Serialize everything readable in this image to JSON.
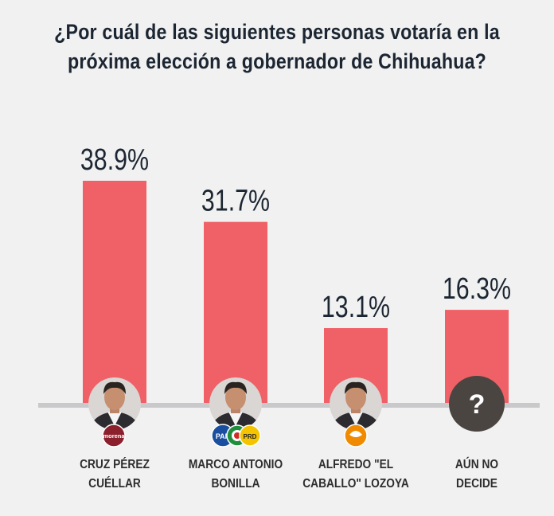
{
  "title_lines": [
    "¿Por cuál de las siguientes personas votaría en la",
    "próxima elección a gobernador de Chihuahua?"
  ],
  "colors": {
    "bar": "#ef6166",
    "text": "#1c2632",
    "baseline": "#c9c9cc",
    "question_avatar": "#4b4542"
  },
  "chart_data": {
    "type": "bar",
    "title": "¿Por cuál de las siguientes personas votaría en la próxima elección a gobernador de Chihuahua?",
    "categories": [
      "CRUZ PÉREZ CUÉLLAR",
      "MARCO ANTONIO BONILLA",
      "ALFREDO \"EL CABALLO\" LOZOYA",
      "AÚN NO DECIDE"
    ],
    "values": [
      38.9,
      31.7,
      13.1,
      16.3
    ],
    "value_labels": [
      "38.9%",
      "31.7%",
      "13.1%",
      "16.3%"
    ],
    "label_lines": [
      [
        "CRUZ PÉREZ",
        "CUÉLLAR"
      ],
      [
        "MARCO ANTONIO",
        "BONILLA"
      ],
      [
        "ALFREDO \"EL",
        "CABALLO\" LOZOYA"
      ],
      [
        "AÚN NO",
        "DECIDE"
      ]
    ],
    "party_logos": [
      [
        "morena-logo"
      ],
      [
        "pan-logo",
        "pri-logo",
        "prd-logo"
      ],
      [
        "movimiento-ciudadano-logo"
      ],
      []
    ],
    "party_logo_text": {
      "morena": "morena",
      "pan": "PAN",
      "pri": "PRI",
      "prd": "PRD"
    },
    "question_mark": "?",
    "xlabel": "",
    "ylabel": "",
    "ylim": [
      0,
      38.9
    ],
    "grid": false,
    "legend": "none"
  }
}
